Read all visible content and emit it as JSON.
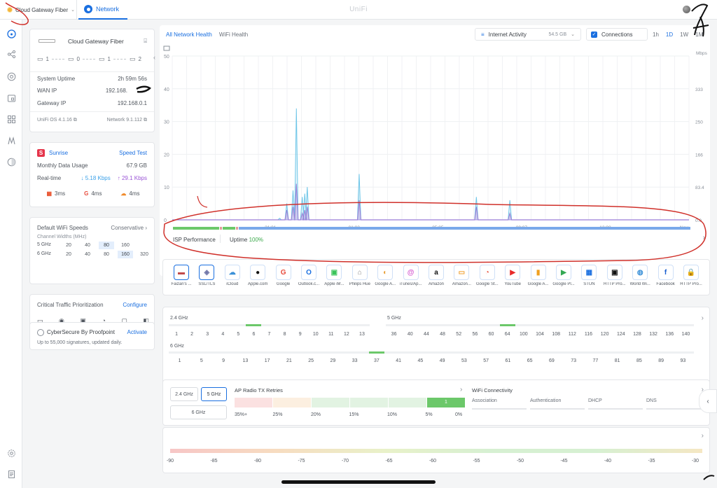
{
  "topbar": {
    "gateway_name": "Cloud Gateway Fiber",
    "network_tab": "Network",
    "brand": "UniFi"
  },
  "rail_icons": [
    "dashboard-icon",
    "topology-icon",
    "clients-icon",
    "devices-icon",
    "apps-icon",
    "insights-icon",
    "security-icon",
    "settings-icon",
    "notes-icon"
  ],
  "device_card": {
    "name": "Cloud Gateway Fiber",
    "ports": [
      {
        "label": "1",
        "icon": "ethernet-icon"
      },
      {
        "label": "0",
        "icon": "switch-icon"
      },
      {
        "label": "1",
        "icon": "ap-icon"
      },
      {
        "label": "2",
        "icon": "monitor-icon"
      }
    ],
    "uptime_label": "System Uptime",
    "uptime_value": "2h 59m 56s",
    "wan_label": "WAN IP",
    "wan_value": "192.168.",
    "gateway_label": "Gateway IP",
    "gateway_value": "192.168.0.1",
    "os_version": "UniFi OS 4.1.16",
    "net_version": "Network 9.1.112"
  },
  "isp_card": {
    "badge": "S",
    "name": "Sunrise",
    "speed_test": "Speed Test",
    "monthly_label": "Monthly Data Usage",
    "monthly_value": "67.9 GB",
    "realtime_label": "Real-time",
    "down": "5.18 Kbps",
    "up": "29.1 Kbps",
    "latencies": [
      {
        "icon": "microsoft-icon",
        "value": "3ms"
      },
      {
        "icon": "google-icon",
        "value": "4ms"
      },
      {
        "icon": "cloudflare-icon",
        "value": "4ms"
      }
    ],
    "colors": {
      "badge": "#e5344a",
      "down": "#3aa0e8",
      "up": "#9a54d6"
    }
  },
  "wifi_card": {
    "title": "Default WiFi Speeds",
    "mode": "Conservative",
    "subtitle": "Channel Widths (MHz)",
    "rows": [
      {
        "band": "5 GHz",
        "options": [
          "20",
          "40",
          "80",
          "160"
        ],
        "selected": "80"
      },
      {
        "band": "6 GHz",
        "options": [
          "20",
          "40",
          "80",
          "160",
          "320"
        ],
        "selected": "160"
      }
    ]
  },
  "traffic_card": {
    "title": "Critical Traffic Prioritization",
    "configure": "Configure",
    "icons": [
      "desktop-icon",
      "chat-icon",
      "video-call-icon",
      "pie-icon",
      "media-icon",
      "camera-icon"
    ]
  },
  "cyber_card": {
    "title": "CyberSecure By Proofpoint",
    "activate": "Activate",
    "subtitle": "Up to 55,000 signatures, updated daily."
  },
  "health": {
    "tabs": [
      "All Network Health",
      "WiFi Health"
    ],
    "active_tab": "All Network Health",
    "activity_label": "Internet Activity",
    "activity_value": "54.5 GB",
    "connections_label": "Connections",
    "ranges": [
      "1h",
      "1D",
      "1W",
      "1M"
    ],
    "active_range": "1D"
  },
  "chart_data": {
    "type": "line",
    "x_ticks": [
      "21:01",
      "01:03",
      "05:05",
      "09:07",
      "13:08",
      "Now"
    ],
    "y_left_ticks": [
      "0",
      "10",
      "20",
      "30",
      "40",
      "50"
    ],
    "y_right_ticks": [
      "0.0",
      "83.4",
      "166",
      "250",
      "333"
    ],
    "y_right_unit": "Mbps",
    "ylim_left": [
      0,
      50
    ],
    "series": [
      {
        "points": [
          [
            0.11,
            0.5
          ],
          [
            0.13,
            0
          ],
          [
            0.195,
            5
          ],
          [
            0.27,
            9
          ],
          [
            0.31,
            34
          ],
          [
            0.38,
            7
          ],
          [
            0.41,
            8
          ],
          [
            0.44,
            10
          ],
          [
            1.0,
            0
          ],
          [
            1.06,
            14
          ],
          [
            2.39,
            0
          ],
          [
            2.46,
            7
          ],
          [
            2.79,
            0
          ],
          [
            2.86,
            6
          ]
        ],
        "color": "#6fc6e8"
      },
      {
        "points": [
          [
            0.13,
            0
          ],
          [
            0.195,
            3
          ],
          [
            0.27,
            4
          ],
          [
            0.31,
            11
          ],
          [
            0.38,
            2
          ],
          [
            0.41,
            3
          ],
          [
            0.44,
            4
          ],
          [
            1.0,
            0
          ],
          [
            1.06,
            6
          ],
          [
            2.39,
            0
          ],
          [
            2.46,
            4
          ],
          [
            2.79,
            0
          ],
          [
            2.86,
            2
          ]
        ],
        "color": "#9a7fd6"
      }
    ]
  },
  "isp_perf": {
    "label": "ISP Performance",
    "uptime_label": "Uptime",
    "uptime_value": "100%",
    "colors": {
      "good": "#6cc86a",
      "bar": "#7aa9ea",
      "warn": "#e39a9a"
    }
  },
  "apps": [
    {
      "label": "Faizan's ...",
      "glyph": "▬",
      "color": "#c24a4a",
      "selected": true
    },
    {
      "label": "SSL/TLS",
      "glyph": "◈",
      "color": "#7076a8",
      "selected": true
    },
    {
      "label": "iCloud",
      "glyph": "☁",
      "color": "#3a90d8"
    },
    {
      "label": "Apple.com",
      "glyph": "●",
      "color": "#111"
    },
    {
      "label": "Google",
      "glyph": "G",
      "color": "#e84a3a"
    },
    {
      "label": "Outlook.c...",
      "glyph": "O",
      "color": "#1a6fe0"
    },
    {
      "label": "Apple iM...",
      "glyph": "▣",
      "color": "#3ac45a"
    },
    {
      "label": "Philips Hue",
      "glyph": "⌂",
      "color": "#888"
    },
    {
      "label": "Google A...",
      "glyph": "◐",
      "color": "#e8a03a"
    },
    {
      "label": "iTunes/Ap...",
      "glyph": "@",
      "color": "#d45ad0"
    },
    {
      "label": "Amazon",
      "glyph": "a",
      "color": "#111"
    },
    {
      "label": "Amazon...",
      "glyph": "▭",
      "color": "#f0a030"
    },
    {
      "label": "Google St...",
      "glyph": "◔",
      "color": "#e8503a"
    },
    {
      "label": "YouTube",
      "glyph": "▶",
      "color": "#e82a2a"
    },
    {
      "label": "Google A...",
      "glyph": "▮",
      "color": "#f0a020"
    },
    {
      "label": "Google Pl...",
      "glyph": "▶",
      "color": "#34a853"
    },
    {
      "label": "STUN",
      "glyph": "▦",
      "color": "#1a6fe0"
    },
    {
      "label": "HTTP Pro...",
      "glyph": "▣",
      "color": "#111"
    },
    {
      "label": "World Wi...",
      "glyph": "◍",
      "color": "#3a90d8"
    },
    {
      "label": "Facebook",
      "glyph": "f",
      "color": "#1a5fd0"
    },
    {
      "label": "HTTP Pro...",
      "glyph": "🔒",
      "color": "#f0c020"
    }
  ],
  "channels": {
    "band24_label": "2.4 GHz",
    "band24": [
      "1",
      "2",
      "3",
      "4",
      "5",
      "6",
      "7",
      "8",
      "9",
      "10",
      "11",
      "12",
      "13"
    ],
    "band24_active": "6",
    "band5_label": "5 GHz",
    "band5": [
      "36",
      "40",
      "44",
      "48",
      "52",
      "56",
      "60",
      "64",
      "100",
      "104",
      "108",
      "112",
      "116",
      "120",
      "124",
      "128",
      "132",
      "136",
      "140"
    ],
    "band5_active": "64",
    "band6_label": "6 GHz",
    "band6": [
      "1",
      "5",
      "9",
      "13",
      "17",
      "21",
      "25",
      "29",
      "33",
      "37",
      "41",
      "45",
      "49",
      "53",
      "57",
      "61",
      "65",
      "69",
      "73",
      "77",
      "81",
      "85",
      "89",
      "93"
    ],
    "band6_active": "37",
    "active_color": "#6cc86a"
  },
  "retries": {
    "band_buttons": [
      "2.4 GHz",
      "5 GHz",
      "6 GHz"
    ],
    "active_band": "5 GHz",
    "title": "AP Radio TX Retries",
    "scale": [
      "35%+",
      "25%",
      "20%",
      "15%",
      "10%",
      "5%",
      "0%"
    ],
    "active_value": "1",
    "connectivity_title": "WiFi Connectivity",
    "connectivity_cols": [
      "Association",
      "Authentication",
      "DHCP",
      "DNS"
    ]
  },
  "signal": {
    "ticks": [
      "-90",
      "-85",
      "-80",
      "-75",
      "-70",
      "-65",
      "-60",
      "-55",
      "-50",
      "-45",
      "-40",
      "-35",
      "-30"
    ]
  }
}
